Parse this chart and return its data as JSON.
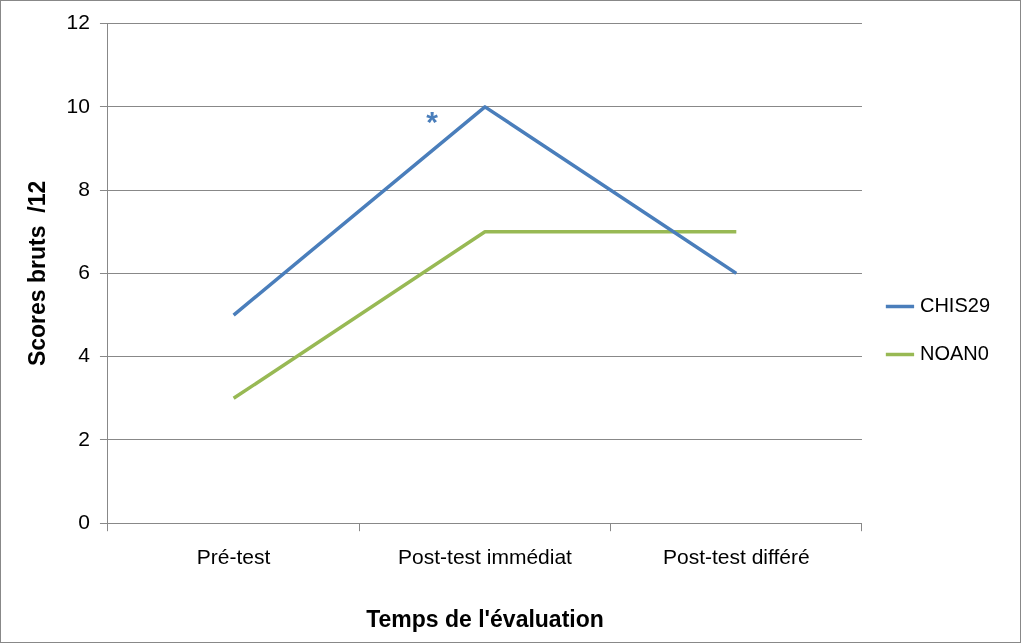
{
  "chart_data": {
    "type": "line",
    "xlabel": "Temps de l'évaluation",
    "ylabel": "Scores bruts  /12",
    "categories": [
      "Pré-test",
      "Post-test immédiat",
      "Post-test différé"
    ],
    "series": [
      {
        "name": "CHIS29",
        "color": "#4a7ebb",
        "values": [
          5,
          10,
          6
        ]
      },
      {
        "name": "NOAN0",
        "color": "#98b954",
        "values": [
          3,
          7,
          7
        ]
      }
    ],
    "ylim": [
      0,
      12
    ],
    "yticks": [
      0,
      2,
      4,
      6,
      8,
      10,
      12
    ],
    "grid": "y",
    "legend": "right",
    "marker": "none",
    "line_style": "solid",
    "annotations": [
      "*"
    ]
  }
}
